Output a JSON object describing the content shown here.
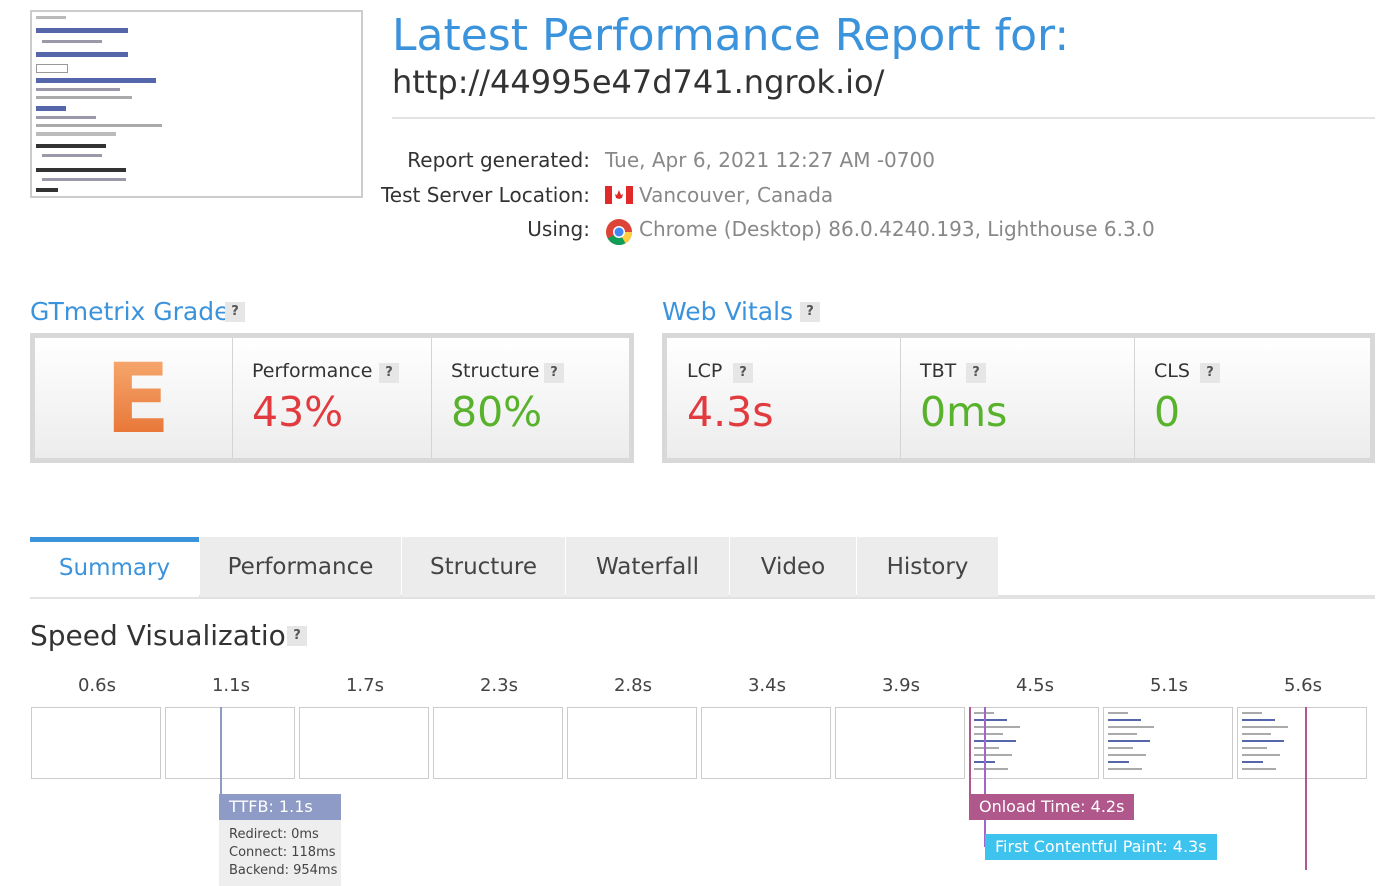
{
  "header": {
    "title": "Latest Performance Report for:",
    "url": "http://44995e47d741.ngrok.io/"
  },
  "meta": [
    {
      "label": "Report generated:",
      "value": "Tue, Apr 6, 2021 12:27 AM -0700"
    },
    {
      "label": "Test Server Location:",
      "value": "Vancouver, Canada"
    },
    {
      "label": "Using:",
      "value": "Chrome (Desktop) 86.0.4240.193, Lighthouse 6.3.0"
    }
  ],
  "help_icon": "?",
  "grade": {
    "title": "GTmetrix Grade",
    "letter": "E",
    "metrics": [
      {
        "label": "Performance",
        "value": "43%"
      },
      {
        "label": "Structure",
        "value": "80%"
      }
    ]
  },
  "vitals": {
    "title": "Web Vitals",
    "metrics": [
      {
        "label": "LCP",
        "value": "4.3s"
      },
      {
        "label": "TBT",
        "value": "0ms"
      },
      {
        "label": "CLS",
        "value": "0"
      }
    ]
  },
  "tabs": [
    "Summary",
    "Performance",
    "Structure",
    "Waterfall",
    "Video",
    "History"
  ],
  "speed": {
    "title": "Speed Visualization",
    "frames": [
      "0.6s",
      "1.1s",
      "1.7s",
      "2.3s",
      "2.8s",
      "3.4s",
      "3.9s",
      "4.5s",
      "5.1s",
      "5.6s"
    ],
    "ttfb": {
      "label": "TTFB: 1.1s",
      "details": [
        "Redirect: 0ms",
        "Connect: 118ms",
        "Backend: 954ms"
      ]
    },
    "onload": "Onload Time: 4.2s",
    "fcp": "First Contentful Paint: 4.3s"
  }
}
